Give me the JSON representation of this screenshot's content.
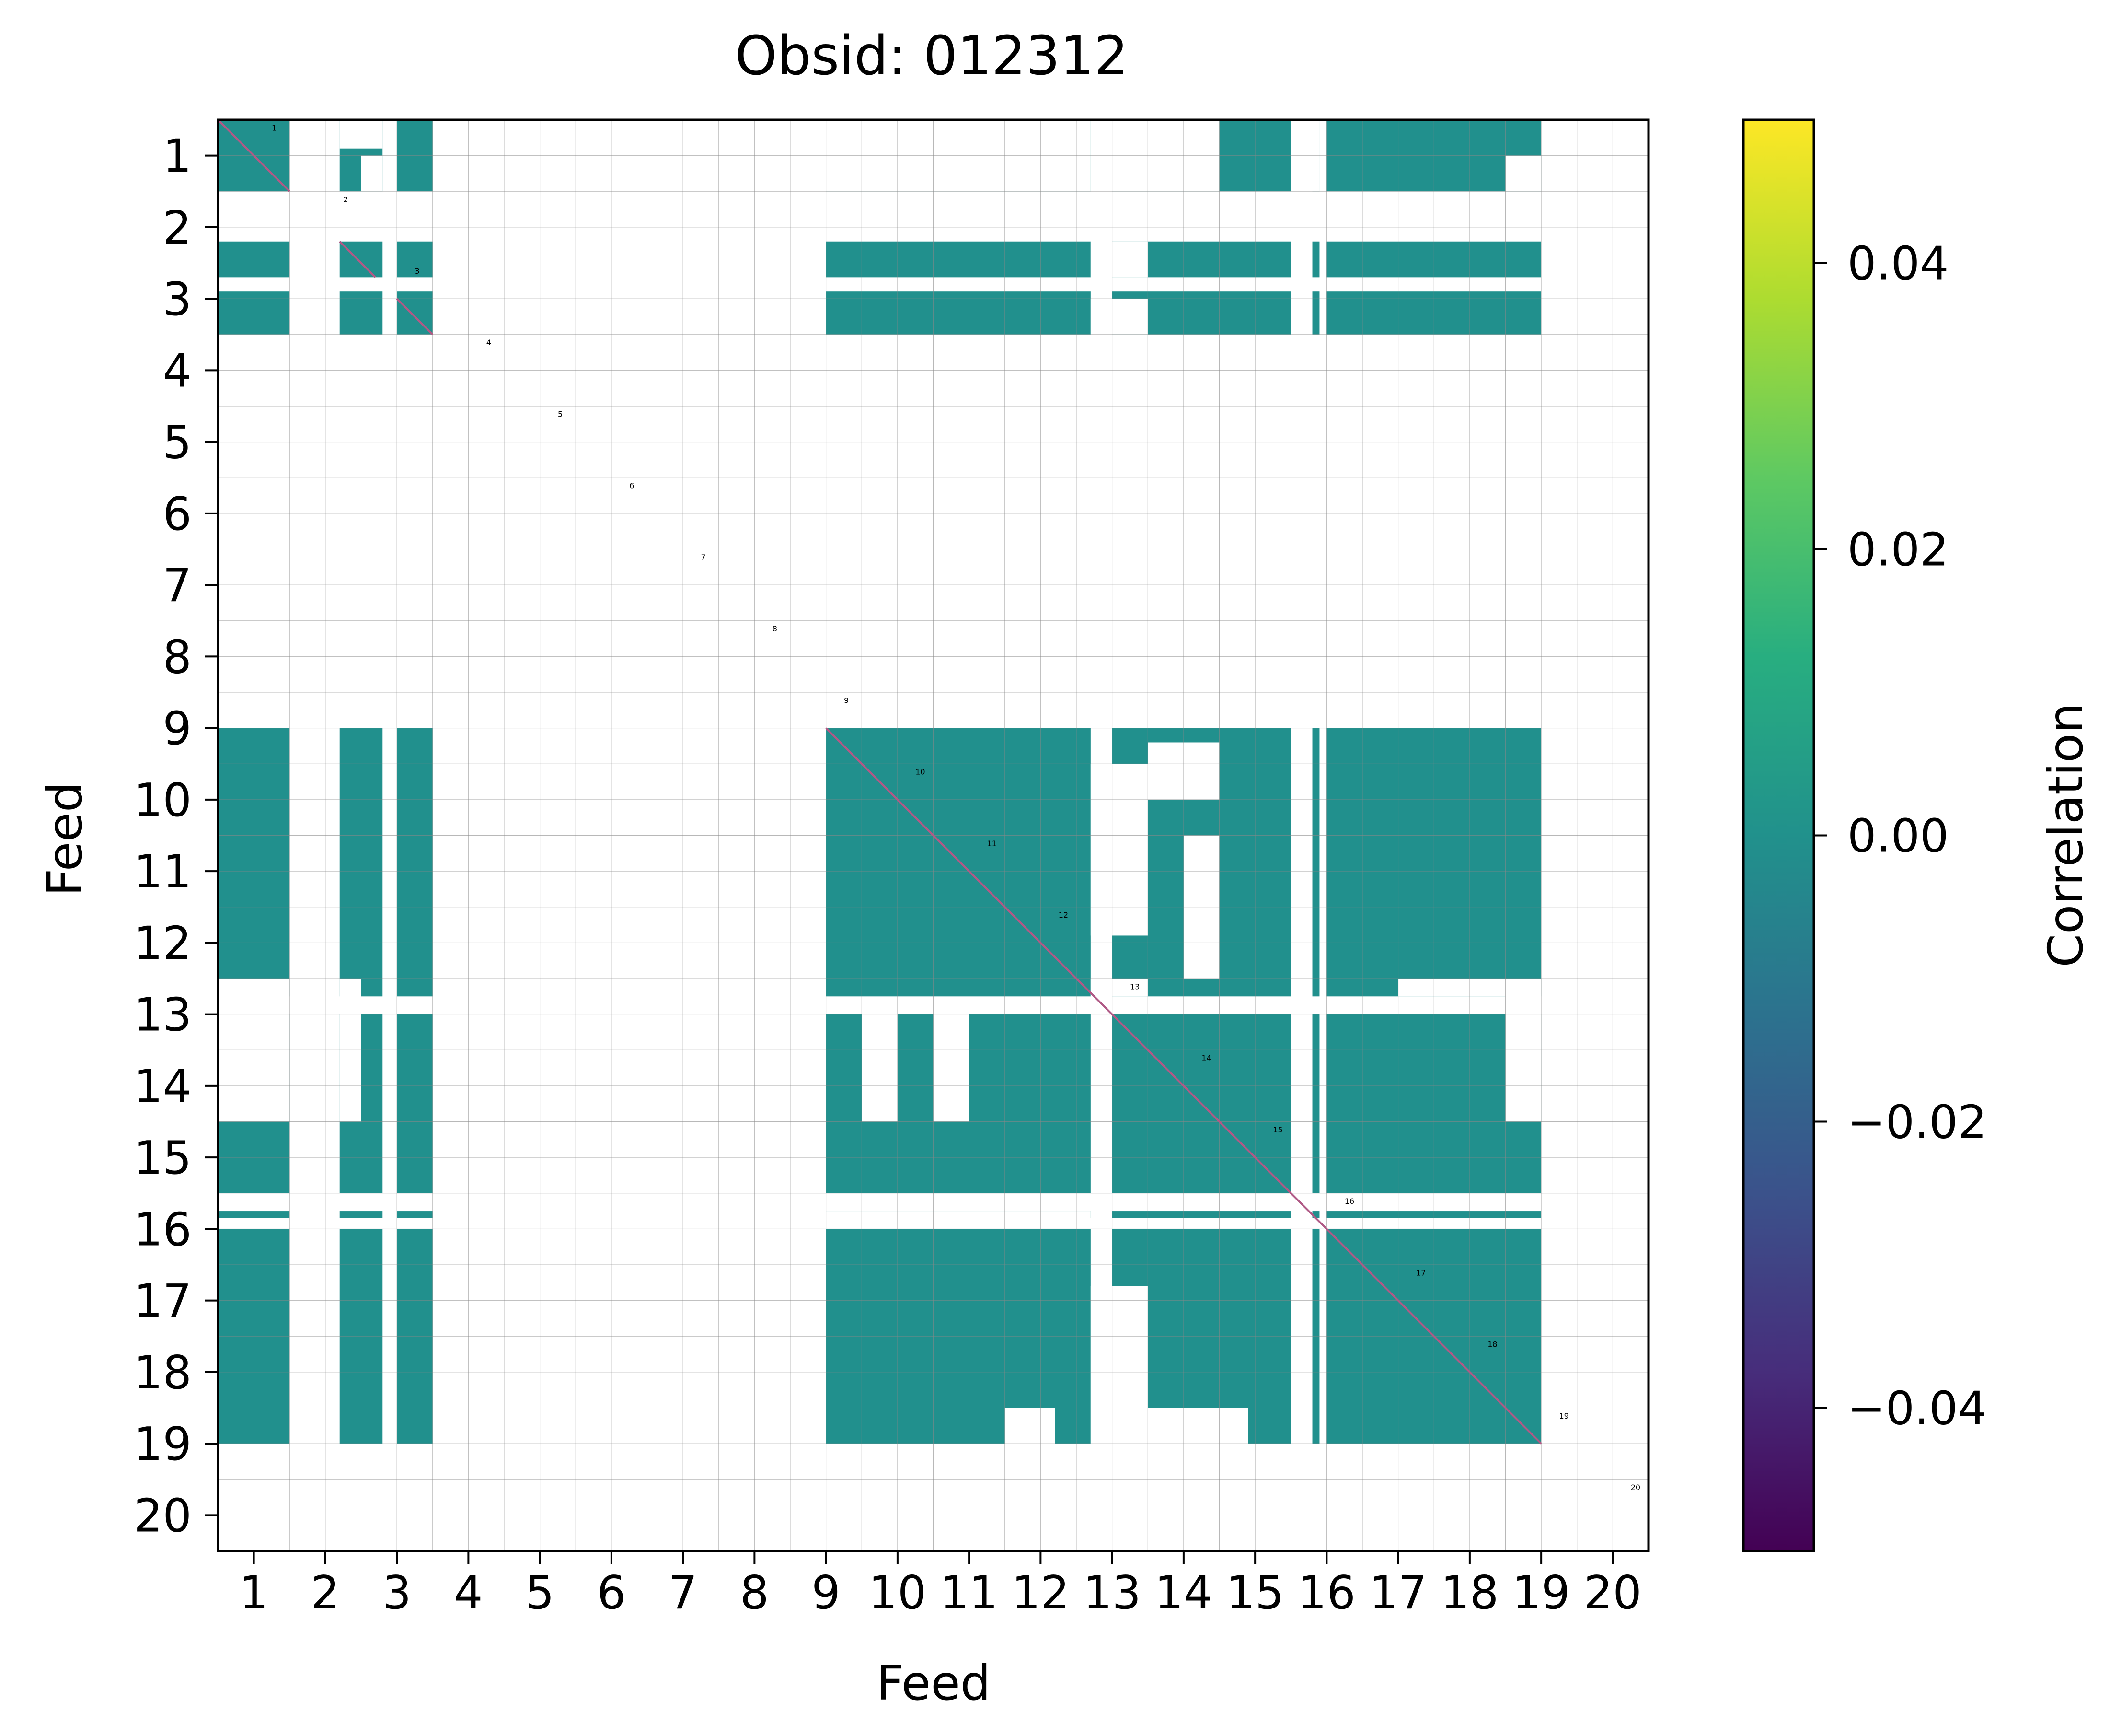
{
  "chart_data": {
    "type": "heatmap",
    "title": "Obsid: 012312",
    "xlabel": "Feed",
    "ylabel": "Feed",
    "x_tick_labels": [
      "1",
      "2",
      "3",
      "4",
      "5",
      "6",
      "7",
      "8",
      "9",
      "10",
      "11",
      "12",
      "13",
      "14",
      "15",
      "16",
      "17",
      "18",
      "19",
      "20"
    ],
    "y_tick_labels": [
      "1",
      "2",
      "3",
      "4",
      "5",
      "6",
      "7",
      "8",
      "9",
      "10",
      "11",
      "12",
      "13",
      "14",
      "15",
      "16",
      "17",
      "18",
      "19",
      "20"
    ],
    "feed_labels": [
      "1",
      "2",
      "3",
      "4",
      "5",
      "6",
      "7",
      "8",
      "9",
      "10",
      "11",
      "12",
      "13",
      "14",
      "15",
      "16",
      "17",
      "18",
      "19",
      "20"
    ],
    "colorbar": {
      "label": "Correlation",
      "range": [
        -0.05,
        0.05
      ],
      "ticks": [
        -0.04,
        -0.02,
        0.0,
        0.02,
        0.04
      ],
      "tick_labels": [
        "−0.04",
        "−0.02",
        "0.00",
        "0.02",
        "0.04"
      ],
      "cmap": "viridis"
    },
    "cell_value": 0.0,
    "cell_color": "#21908d",
    "diagonal_color": "#b05a86",
    "valid_feed_blocks_x": [
      [
        0.5,
        1.5
      ],
      [
        2.2,
        2.8
      ],
      [
        3.0,
        3.5
      ],
      [
        9.0,
        12.7
      ],
      [
        13.0,
        15.5
      ],
      [
        15.8,
        15.9
      ],
      [
        16.0,
        18.5
      ],
      [
        18.5,
        19.0
      ]
    ],
    "valid_feed_blocks_y": [
      [
        0.5,
        1.5
      ],
      [
        2.2,
        2.7
      ],
      [
        2.9,
        3.5
      ],
      [
        9.0,
        12.5
      ],
      [
        12.5,
        12.75
      ],
      [
        13.0,
        14.5
      ],
      [
        14.5,
        15.5
      ],
      [
        15.75,
        15.85
      ],
      [
        16.0,
        18.5
      ],
      [
        18.5,
        19.0
      ]
    ],
    "masked_regions": [
      {
        "x": [
          0.5,
          1.5
        ],
        "y": [
          12.5,
          14.5
        ]
      },
      {
        "x": [
          2.2,
          2.5
        ],
        "y": [
          12.5,
          14.5
        ]
      },
      {
        "x": [
          2.2,
          2.8
        ],
        "y": [
          0.5,
          0.9
        ]
      },
      {
        "x": [
          2.5,
          2.8
        ],
        "y": [
          1.0,
          1.5
        ]
      },
      {
        "x": [
          9.0,
          12.7
        ],
        "y": [
          0.5,
          1.5
        ],
        "note": "partial"
      },
      {
        "x": [
          13.0,
          14.5
        ],
        "y": [
          0.5,
          1.5
        ]
      },
      {
        "x": [
          15.5,
          15.9
        ],
        "y": [
          0.5,
          1.5
        ]
      },
      {
        "x": [
          18.5,
          19.0
        ],
        "y": [
          1.0,
          1.5
        ]
      },
      {
        "x": [
          12.7,
          13.5
        ],
        "y": [
          3.0,
          3.5
        ]
      },
      {
        "x": [
          12.7,
          13.5
        ],
        "y": [
          2.2,
          2.7
        ]
      },
      {
        "x": [
          9.5,
          10.0
        ],
        "y": [
          13.0,
          14.5
        ]
      },
      {
        "x": [
          10.5,
          11.0
        ],
        "y": [
          13.0,
          14.5
        ]
      },
      {
        "x": [
          12.7,
          13.5
        ],
        "y": [
          9.5,
          11.9
        ]
      },
      {
        "x": [
          13.5,
          14.5
        ],
        "y": [
          9.2,
          10.0
        ]
      },
      {
        "x": [
          14.0,
          14.5
        ],
        "y": [
          10.5,
          12.5
        ]
      },
      {
        "x": [
          12.7,
          13.5
        ],
        "y": [
          12.5,
          12.75
        ]
      },
      {
        "x": [
          9.0,
          12.7
        ],
        "y": [
          15.75,
          15.85
        ],
        "note": "partial"
      },
      {
        "x": [
          12.7,
          13.5
        ],
        "y": [
          16.8,
          19.0
        ]
      },
      {
        "x": [
          11.5,
          12.2
        ],
        "y": [
          18.5,
          19.0
        ]
      },
      {
        "x": [
          13.0,
          13.5
        ],
        "y": [
          18.5,
          19.0
        ]
      },
      {
        "x": [
          13.5,
          14.9
        ],
        "y": [
          18.5,
          19.0
        ]
      },
      {
        "x": [
          18.5,
          19.0
        ],
        "y": [
          12.5,
          14.5
        ]
      },
      {
        "x": [
          17.0,
          18.5
        ],
        "y": [
          12.5,
          12.75
        ]
      }
    ]
  }
}
